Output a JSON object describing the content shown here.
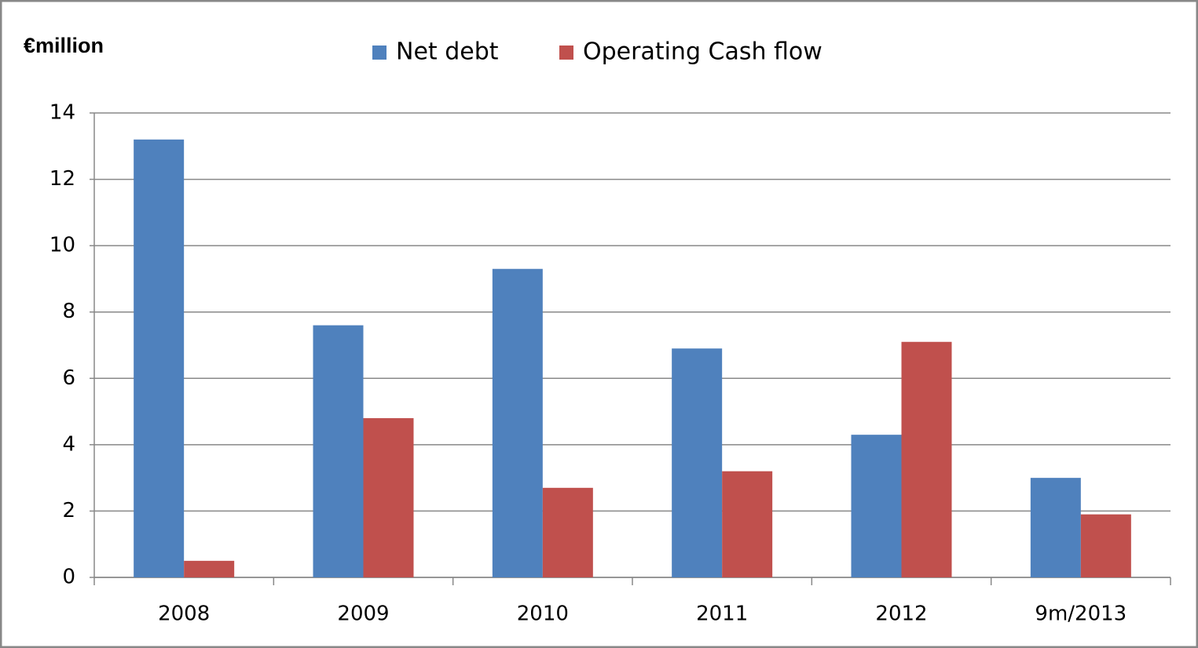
{
  "chart_data": {
    "type": "bar",
    "title": "€million",
    "categories": [
      "2008",
      "2009",
      "2010",
      "2011",
      "2012",
      "9m/2013"
    ],
    "series": [
      {
        "name": "Net debt",
        "color": "#4f81bd",
        "values": [
          13.2,
          7.6,
          9.3,
          6.9,
          4.3,
          3.0
        ]
      },
      {
        "name": "Operating Cash flow",
        "color": "#c0504d",
        "values": [
          0.5,
          4.8,
          2.7,
          3.2,
          7.1,
          1.9
        ]
      }
    ],
    "ylim": [
      0,
      14
    ],
    "yticks": [
      0,
      2,
      4,
      6,
      8,
      10,
      12,
      14
    ],
    "grid": true,
    "legend": "top"
  }
}
